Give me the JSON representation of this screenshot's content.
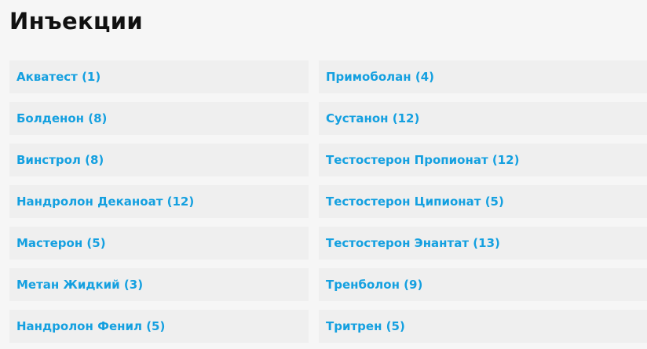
{
  "title": "Инъекции",
  "link_color": "#14a0e0",
  "left": [
    "Акватест (1)",
    "Болденон (8)",
    "Винстрол (8)",
    "Нандролон Деканоат (12)",
    "Мастерон (5)",
    "Метан Жидкий (3)",
    "Нандролон Фенил (5)"
  ],
  "right": [
    "Примоболан (4)",
    "Сустанон (12)",
    "Тестостерон Пропионат (12)",
    "Тестостерон Ципионат (5)",
    "Тестостерон Энантат (13)",
    "Тренболон (9)",
    "Тритрен (5)"
  ]
}
